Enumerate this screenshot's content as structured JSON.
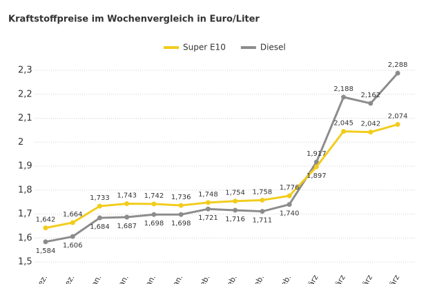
{
  "chart_data": {
    "type": "line",
    "title": "Kraftstoffpreise im Wochenvergleich in Euro/Liter",
    "categories": [
      "Dez.",
      "Dez.",
      "Jan.",
      "Jan.",
      "Jan.",
      "Jan.",
      "Feb.",
      "Feb.",
      "Feb.",
      "Feb.",
      "März",
      "März",
      "März",
      "März"
    ],
    "series": [
      {
        "name": "Super E10",
        "color": "#f2cc1c",
        "values": [
          1.642,
          1.664,
          1.733,
          1.743,
          1.742,
          1.736,
          1.748,
          1.754,
          1.758,
          1.776,
          1.897,
          2.045,
          2.042,
          2.074
        ],
        "value_labels": [
          "1,642",
          "1,664",
          "1,733",
          "1,743",
          "1,742",
          "1,736",
          "1,748",
          "1,754",
          "1,758",
          "1,776",
          "1,897",
          "2,045",
          "2,042",
          "2,074"
        ]
      },
      {
        "name": "Diesel",
        "color": "#8c8c8c",
        "values": [
          1.584,
          1.606,
          1.684,
          1.687,
          1.698,
          1.698,
          1.721,
          1.716,
          1.711,
          1.74,
          1.917,
          2.188,
          2.162,
          2.288
        ],
        "value_labels": [
          "1,584",
          "1,606",
          "1,684",
          "1,687",
          "1,698",
          "1,698",
          "1,721",
          "1,716",
          "1,711",
          "1,740",
          "1,917",
          "2,188",
          "2,162",
          "2,288"
        ]
      }
    ],
    "ylim": [
      1.5,
      2.3
    ],
    "yticks": [
      {
        "value": 1.5,
        "label": "1,5"
      },
      {
        "value": 1.6,
        "label": "1,6"
      },
      {
        "value": 1.7,
        "label": "1,7"
      },
      {
        "value": 1.8,
        "label": "1,8"
      },
      {
        "value": 1.9,
        "label": "1,9"
      },
      2,
      {
        "value": 2.1,
        "label": "2,1"
      },
      {
        "value": 2.2,
        "label": "2,2"
      },
      {
        "value": 2.3,
        "label": "2,3"
      }
    ],
    "grid": true
  }
}
